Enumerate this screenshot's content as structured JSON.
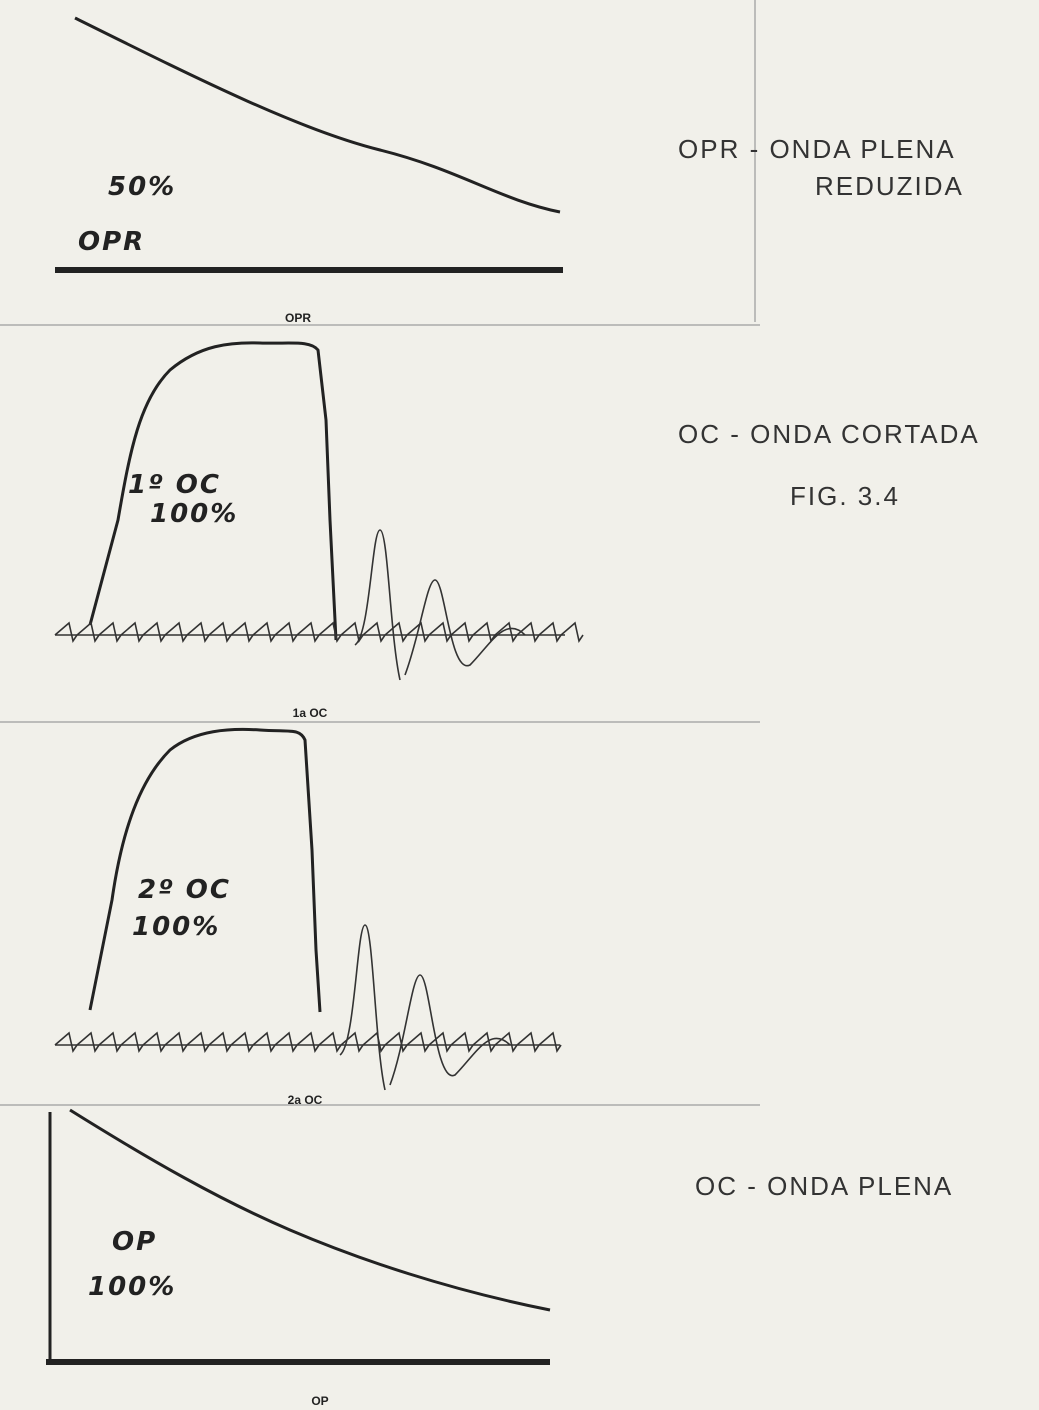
{
  "panels": [
    {
      "annotations": [
        "50%",
        "OPR"
      ],
      "caption": "OPR"
    },
    {
      "annotations": [
        "1º OC",
        "100%"
      ],
      "caption": "1a OC"
    },
    {
      "annotations": [
        "2º OC",
        "100%"
      ],
      "caption": "2a OC"
    },
    {
      "annotations": [
        "OP",
        "100%"
      ],
      "caption": "OP"
    }
  ],
  "legend": [
    [
      "OPR - ONDA PLENA",
      "REDUZIDA"
    ],
    [
      "OC - ONDA CORTADA"
    ],
    [
      "OC - ONDA PLENA"
    ]
  ],
  "figure": "FIG. 3.4"
}
